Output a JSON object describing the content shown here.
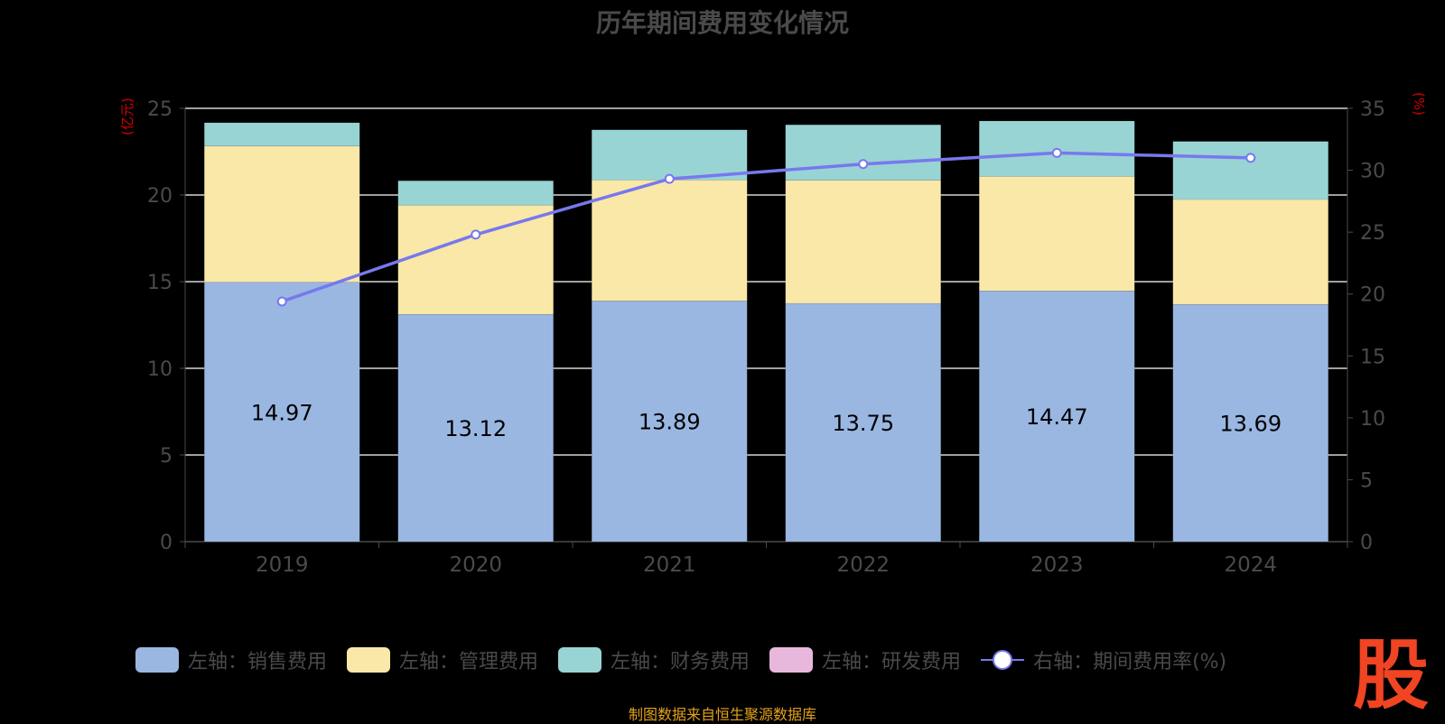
{
  "title": "历年期间费用变化情况",
  "unit_left": "(亿元)",
  "unit_right": "(%)",
  "source": "制图数据来自恒生聚源数据库",
  "logo_text": "股",
  "colors": {
    "sales": "#9ab7e2",
    "admin": "#f9e8a8",
    "finance": "#99d4d4",
    "rnd": "#e8b8dc",
    "rate": "#7878ee",
    "axis_text": "#4a4a4a",
    "grid": "#ffffff"
  },
  "legend": [
    {
      "label": "左轴：销售费用",
      "type": "box",
      "color": "#9ab7e2"
    },
    {
      "label": "左轴：管理费用",
      "type": "box",
      "color": "#f9e8a8"
    },
    {
      "label": "左轴：财务费用",
      "type": "box",
      "color": "#99d4d4"
    },
    {
      "label": "左轴：研发费用",
      "type": "box",
      "color": "#e8b8dc"
    },
    {
      "label": "右轴：期间费用率(%)",
      "type": "line",
      "color": "#7878ee"
    }
  ],
  "chart_data": {
    "type": "bar",
    "stacked": true,
    "categories": [
      "2019",
      "2020",
      "2021",
      "2022",
      "2023",
      "2024"
    ],
    "series": [
      {
        "name": "左轴：销售费用",
        "axis": "left",
        "values": [
          14.97,
          13.12,
          13.89,
          13.75,
          14.47,
          13.69
        ],
        "data_labels": [
          "14.97",
          "13.12",
          "13.89",
          "13.75",
          "14.47",
          "13.69"
        ]
      },
      {
        "name": "左轴：管理费用",
        "axis": "left",
        "values": [
          7.85,
          6.3,
          6.97,
          7.1,
          6.6,
          6.05
        ]
      },
      {
        "name": "左轴：财务费用",
        "axis": "left",
        "values": [
          1.35,
          1.4,
          2.9,
          3.2,
          3.2,
          3.35
        ]
      },
      {
        "name": "左轴：研发费用",
        "axis": "left",
        "values": [
          0,
          0,
          0,
          0,
          0,
          0
        ]
      },
      {
        "name": "右轴：期间费用率(%)",
        "axis": "right",
        "type": "line",
        "values": [
          19.4,
          24.8,
          29.3,
          30.5,
          31.4,
          31.0
        ]
      }
    ],
    "y_left": {
      "min": 0,
      "max": 25,
      "ticks": [
        0,
        5,
        10,
        15,
        20,
        25
      ]
    },
    "y_right": {
      "min": 0,
      "max": 35,
      "ticks": [
        0,
        5,
        10,
        15,
        20,
        25,
        30,
        35
      ]
    },
    "grid": true,
    "legend_position": "bottom"
  }
}
